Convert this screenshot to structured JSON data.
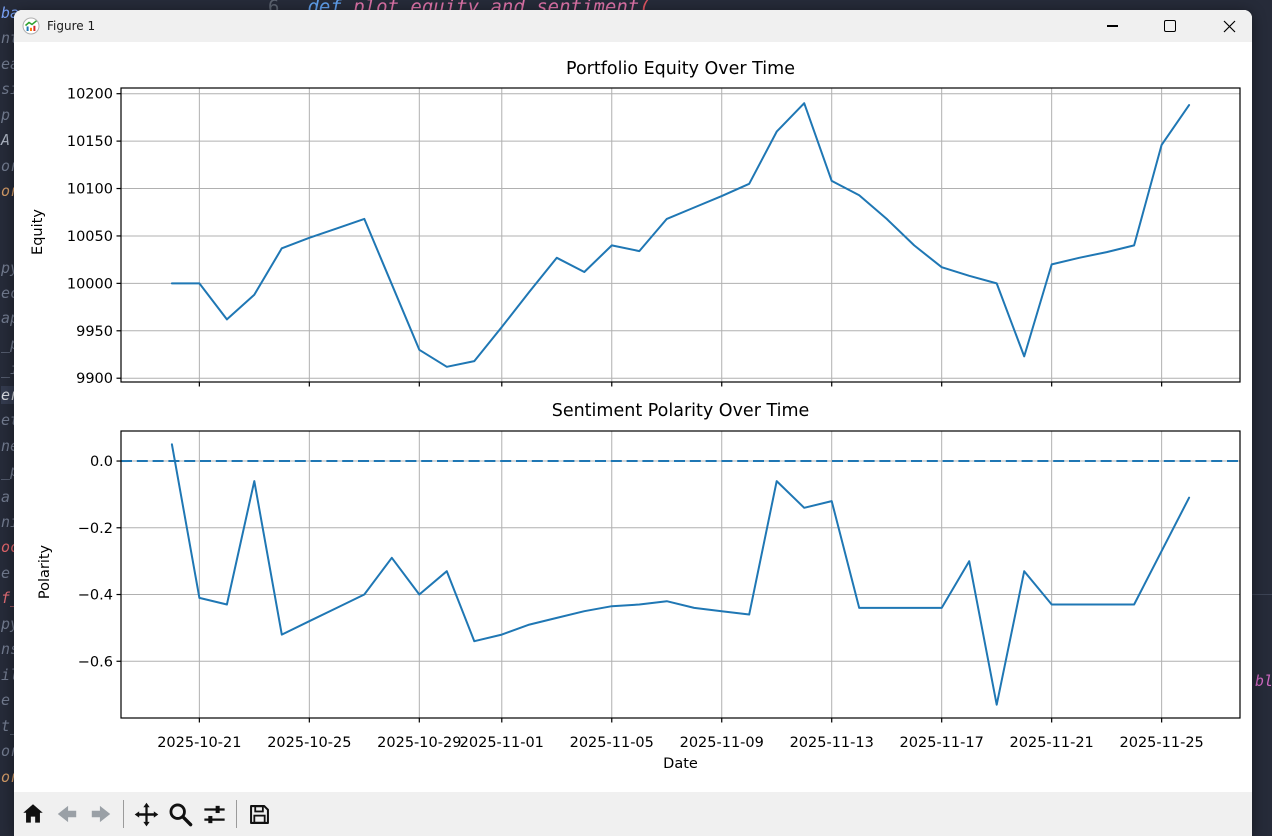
{
  "editor_background": {
    "top_line": {
      "line_number": "6",
      "tokens": [
        {
          "text": "def ",
          "color": "#61a1ef"
        },
        {
          "text": "plot_equity_and_sentiment",
          "color": "#de73a8"
        },
        {
          "text": "(",
          "color": "#e05561"
        }
      ]
    },
    "left_fragments": [
      {
        "text": "ba",
        "color": "#7aa2f7"
      },
      {
        "text": "nt",
        "color": "#717a8e"
      },
      {
        "text": "ea",
        "color": "#717a8e"
      },
      {
        "text": "si",
        "color": "#717a8e"
      },
      {
        "text": "p",
        "color": "#717a8e"
      },
      {
        "text": "A",
        "color": "#aab2c0"
      },
      {
        "text": "or",
        "color": "#717a8e"
      },
      {
        "text": "orl",
        "color": "#d19a66"
      },
      {
        "text": "",
        "color": "#717a8e"
      },
      {
        "text": "",
        "color": "#717a8e"
      },
      {
        "text": "py",
        "color": "#717a8e"
      },
      {
        "text": "ec",
        "color": "#717a8e"
      },
      {
        "text": "ap",
        "color": "#717a8e"
      },
      {
        "text": "_p",
        "color": "#717a8e"
      },
      {
        "text": "_i",
        "color": "#717a8e"
      },
      {
        "text": "er",
        "color": "#d7dae0",
        "highlight": true
      },
      {
        "text": "et",
        "color": "#717a8e"
      },
      {
        "text": "ne",
        "color": "#717a8e"
      },
      {
        "text": "_p",
        "color": "#717a8e"
      },
      {
        "text": "a",
        "color": "#717a8e"
      },
      {
        "text": "ni",
        "color": "#717a8e"
      },
      {
        "text": "oc",
        "color": "#e0646a"
      },
      {
        "text": "e",
        "color": "#717a8e"
      },
      {
        "text": "f_",
        "color": "#e06c75"
      },
      {
        "text": "py",
        "color": "#717a8e"
      },
      {
        "text": "ns",
        "color": "#717a8e"
      },
      {
        "text": "ily",
        "color": "#717a8e"
      },
      {
        "text": "e",
        "color": "#717a8e"
      },
      {
        "text": "t_",
        "color": "#717a8e"
      },
      {
        "text": "or",
        "color": "#717a8e"
      },
      {
        "text": "orl",
        "color": "#d19a66"
      }
    ],
    "right_fragments": [
      {
        "text": "bl",
        "color": "#cf68c1"
      }
    ]
  },
  "window": {
    "title": "Figure 1"
  },
  "toolbar": {
    "buttons": [
      {
        "icon": "home-icon",
        "disabled": false
      },
      {
        "icon": "back-arrow-icon",
        "disabled": true
      },
      {
        "icon": "forward-arrow-icon",
        "disabled": true
      },
      {
        "icon": "pan-icon",
        "disabled": false
      },
      {
        "icon": "zoom-to-rect-icon",
        "disabled": false
      },
      {
        "icon": "configure-subplots-icon",
        "disabled": false
      },
      {
        "icon": "save-icon",
        "disabled": false
      }
    ]
  },
  "colors": {
    "line": "#1f77b4",
    "grid": "#b0b0b0",
    "spine": "#000000",
    "titlebar_bg": "#f0f0f0"
  },
  "chart_data": [
    {
      "type": "line",
      "title": "Portfolio Equity Over Time",
      "ylabel": "Equity",
      "xlabel": "",
      "x": [
        "2025-10-20",
        "2025-10-21",
        "2025-10-22",
        "2025-10-23",
        "2025-10-24",
        "2025-10-25",
        "2025-10-26",
        "2025-10-27",
        "2025-10-28",
        "2025-10-29",
        "2025-10-30",
        "2025-10-31",
        "2025-11-01",
        "2025-11-02",
        "2025-11-03",
        "2025-11-04",
        "2025-11-05",
        "2025-11-06",
        "2025-11-07",
        "2025-11-08",
        "2025-11-09",
        "2025-11-10",
        "2025-11-11",
        "2025-11-12",
        "2025-11-13",
        "2025-11-14",
        "2025-11-15",
        "2025-11-16",
        "2025-11-17",
        "2025-11-18",
        "2025-11-19",
        "2025-11-20",
        "2025-11-21",
        "2025-11-22",
        "2025-11-23",
        "2025-11-24",
        "2025-11-25",
        "2025-11-26"
      ],
      "values": [
        10000,
        10000,
        9962,
        9988,
        10037,
        10048,
        10058,
        10068,
        9999,
        9930,
        9912,
        9918,
        9954,
        9991,
        10027,
        10012,
        10040,
        10034,
        10068,
        10080,
        10092,
        10105,
        10160,
        10190,
        10108,
        10093,
        10068,
        10040,
        10017,
        10008,
        10000,
        9923,
        10020,
        10027,
        10033,
        10040,
        10146,
        10188
      ],
      "ylim": [
        9896,
        10206
      ],
      "yticks": [
        9900,
        9950,
        10000,
        10050,
        10100,
        10150,
        10200
      ],
      "ytick_decimals": 0,
      "xticks": [
        "2025-10-21",
        "2025-10-25",
        "2025-10-29",
        "2025-11-01",
        "2025-11-05",
        "2025-11-09",
        "2025-11-13",
        "2025-11-17",
        "2025-11-21",
        "2025-11-25"
      ],
      "show_xtick_labels": false,
      "grid": true,
      "line_color": "#1f77b4",
      "line_width": 2
    },
    {
      "type": "line",
      "title": "Sentiment Polarity Over Time",
      "ylabel": "Polarity",
      "xlabel": "Date",
      "x": [
        "2025-10-20",
        "2025-10-21",
        "2025-10-22",
        "2025-10-23",
        "2025-10-24",
        "2025-10-25",
        "2025-10-26",
        "2025-10-27",
        "2025-10-28",
        "2025-10-29",
        "2025-10-30",
        "2025-10-31",
        "2025-11-01",
        "2025-11-02",
        "2025-11-03",
        "2025-11-04",
        "2025-11-05",
        "2025-11-06",
        "2025-11-07",
        "2025-11-08",
        "2025-11-09",
        "2025-11-10",
        "2025-11-11",
        "2025-11-12",
        "2025-11-13",
        "2025-11-14",
        "2025-11-15",
        "2025-11-16",
        "2025-11-17",
        "2025-11-18",
        "2025-11-19",
        "2025-11-20",
        "2025-11-21",
        "2025-11-22",
        "2025-11-23",
        "2025-11-24",
        "2025-11-25",
        "2025-11-26"
      ],
      "values": [
        0.05,
        -0.41,
        -0.43,
        -0.06,
        -0.52,
        -0.48,
        -0.44,
        -0.4,
        -0.29,
        -0.4,
        -0.33,
        -0.54,
        -0.52,
        -0.49,
        -0.47,
        -0.45,
        -0.435,
        -0.43,
        -0.42,
        -0.44,
        -0.45,
        -0.46,
        -0.06,
        -0.14,
        -0.12,
        -0.44,
        -0.44,
        -0.44,
        -0.44,
        -0.3,
        -0.73,
        -0.33,
        -0.43,
        -0.43,
        -0.43,
        -0.43,
        -0.27,
        -0.11
      ],
      "ylim": [
        -0.77,
        0.09
      ],
      "yticks": [
        0.0,
        -0.2,
        -0.4,
        -0.6
      ],
      "ytick_decimals": 1,
      "xticks": [
        "2025-10-21",
        "2025-10-25",
        "2025-10-29",
        "2025-11-01",
        "2025-11-05",
        "2025-11-09",
        "2025-11-13",
        "2025-11-17",
        "2025-11-21",
        "2025-11-25"
      ],
      "show_xtick_labels": true,
      "grid": true,
      "line_color": "#1f77b4",
      "line_width": 2,
      "ref_line": {
        "value": 0.0,
        "style": "dashed",
        "color": "#1f77b4"
      }
    }
  ]
}
